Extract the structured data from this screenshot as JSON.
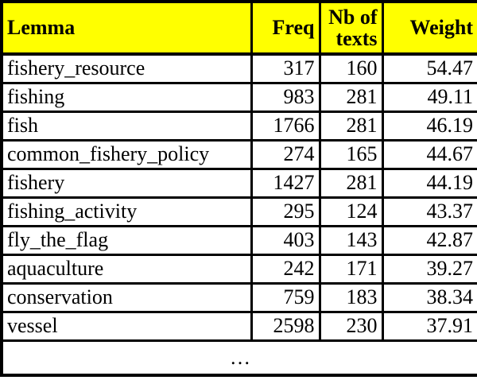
{
  "colors": {
    "header_bg": "#ffff00",
    "border": "#000000",
    "text": "#000000",
    "row_bg": "#ffffff"
  },
  "table": {
    "headers": [
      {
        "label": "Lemma",
        "align": "left"
      },
      {
        "label": "Freq",
        "align": "right"
      },
      {
        "label": "Nb of texts",
        "align": "right"
      },
      {
        "label": "Weight",
        "align": "right"
      }
    ],
    "rows": [
      {
        "lemma": "fishery_resource",
        "freq": "317",
        "nb_of_texts": "160",
        "weight": "54.47"
      },
      {
        "lemma": "fishing",
        "freq": "983",
        "nb_of_texts": "281",
        "weight": "49.11"
      },
      {
        "lemma": "fish",
        "freq": "1766",
        "nb_of_texts": "281",
        "weight": "46.19"
      },
      {
        "lemma": "common_fishery_policy",
        "freq": "274",
        "nb_of_texts": "165",
        "weight": "44.67"
      },
      {
        "lemma": "fishery",
        "freq": "1427",
        "nb_of_texts": "281",
        "weight": "44.19"
      },
      {
        "lemma": "fishing_activity",
        "freq": "295",
        "nb_of_texts": "124",
        "weight": "43.37"
      },
      {
        "lemma": "fly_the_flag",
        "freq": "403",
        "nb_of_texts": "143",
        "weight": "42.87"
      },
      {
        "lemma": "aquaculture",
        "freq": "242",
        "nb_of_texts": "171",
        "weight": "39.27"
      },
      {
        "lemma": "conservation",
        "freq": "759",
        "nb_of_texts": "183",
        "weight": "38.34"
      },
      {
        "lemma": "vessel",
        "freq": "2598",
        "nb_of_texts": "230",
        "weight": "37.91"
      }
    ],
    "ellipsis": "…"
  }
}
